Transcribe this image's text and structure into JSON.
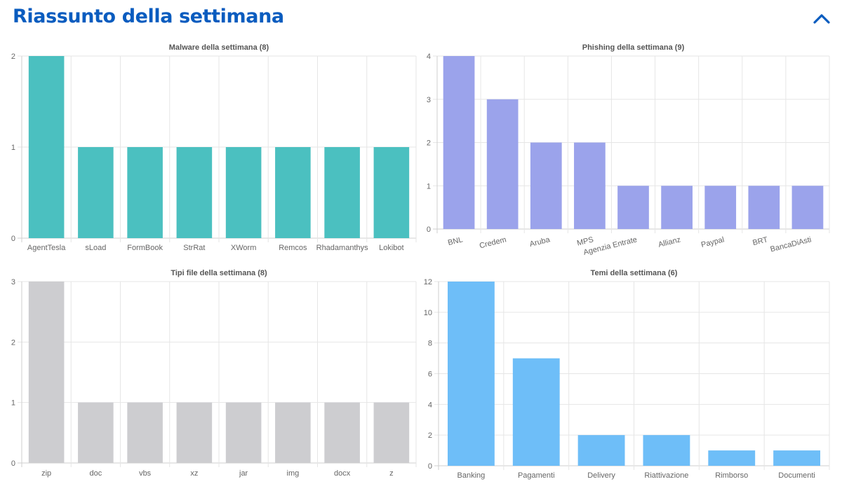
{
  "header": {
    "title": "Riassunto della settimana",
    "toggle_icon": "chevron-up-icon",
    "accent_color": "#0a5cbf"
  },
  "chart_data": [
    {
      "id": "malware",
      "type": "bar",
      "title": "Malware della settimana (8)",
      "categories": [
        "AgentTesla",
        "sLoad",
        "FormBook",
        "StrRat",
        "XWorm",
        "Remcos",
        "Rhadamanthys",
        "Lokibot"
      ],
      "values": [
        2,
        1,
        1,
        1,
        1,
        1,
        1,
        1
      ],
      "ylim": [
        0,
        2
      ],
      "yticks": [
        0,
        1,
        2
      ],
      "color": "#4bc0c0",
      "grid": true,
      "rotated_labels": false
    },
    {
      "id": "phishing",
      "type": "bar",
      "title": "Phishing della settimana (9)",
      "categories": [
        "BNL",
        "Credem",
        "Aruba",
        "MPS",
        "Agenzia Entrate",
        "Allianz",
        "Paypal",
        "BRT",
        "BancaDiAsti"
      ],
      "values": [
        4,
        3,
        2,
        2,
        1,
        1,
        1,
        1,
        1
      ],
      "ylim": [
        0,
        4
      ],
      "yticks": [
        0,
        1,
        2,
        3,
        4
      ],
      "color": "#9ba3eb",
      "grid": true,
      "rotated_labels": true
    },
    {
      "id": "filetypes",
      "type": "bar",
      "title": "Tipi file della settimana (8)",
      "categories": [
        "zip",
        "doc",
        "vbs",
        "xz",
        "jar",
        "img",
        "docx",
        "z"
      ],
      "values": [
        3,
        1,
        1,
        1,
        1,
        1,
        1,
        1
      ],
      "ylim": [
        0,
        3
      ],
      "yticks": [
        0,
        1,
        2,
        3
      ],
      "color": "#cdcdd0",
      "grid": true,
      "rotated_labels": false
    },
    {
      "id": "themes",
      "type": "bar",
      "title": "Temi della settimana (6)",
      "categories": [
        "Banking",
        "Pagamenti",
        "Delivery",
        "Riattivazione",
        "Rimborso",
        "Documenti"
      ],
      "values": [
        12,
        7,
        2,
        2,
        1,
        1
      ],
      "ylim": [
        0,
        12
      ],
      "yticks": [
        0,
        2,
        4,
        6,
        8,
        10,
        12
      ],
      "color": "#6ebef8",
      "grid": true,
      "rotated_labels": false
    }
  ]
}
